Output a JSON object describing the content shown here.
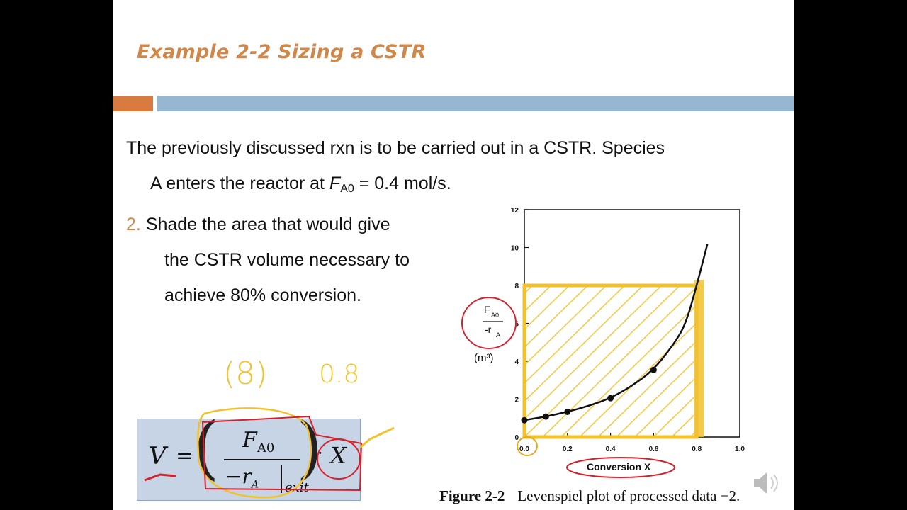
{
  "slide": {
    "title": "Example 2-2 Sizing a CSTR",
    "intro_line1": "The previously discussed rxn is to be carried out in a CSTR. Species",
    "intro_line2_pre": "A  enters the reactor at ",
    "intro_var": "F",
    "intro_sub": "A0",
    "intro_line2_post": " = 0.4 mol/s.",
    "item_number": "2.",
    "item_line1": "Shade the area that would give",
    "item_line2": "the CSTR volume necessary to",
    "item_line3": "achieve 80% conversion."
  },
  "equation": {
    "lhs": "V",
    "equals": "=",
    "num_var": "F",
    "num_sub": "A0",
    "den_var": "−r",
    "den_sub": "A",
    "den_eval": "exit",
    "dot": "·",
    "rhs_var": "X"
  },
  "handwriting": {
    "value_a": "(8)",
    "value_b": "0.8"
  },
  "chart_data": {
    "type": "line",
    "title": "",
    "xlabel": "Conversion X",
    "ylabel_lines": [
      "F",
      "A0",
      "-r",
      "A",
      "(m³)"
    ],
    "xlim": [
      0.0,
      1.0
    ],
    "ylim": [
      0,
      12
    ],
    "x_ticks": [
      "0.0",
      "0.2",
      "0.4",
      "0.6",
      "0.8",
      "1.0"
    ],
    "y_ticks": [
      "0",
      "2",
      "4",
      "6",
      "8",
      "10",
      "12"
    ],
    "points": [
      {
        "x": 0.0,
        "y": 0.89
      },
      {
        "x": 0.1,
        "y": 1.08
      },
      {
        "x": 0.2,
        "y": 1.33
      },
      {
        "x": 0.4,
        "y": 2.05
      },
      {
        "x": 0.6,
        "y": 3.54
      }
    ],
    "curve": [
      {
        "x": 0.0,
        "y": 0.89
      },
      {
        "x": 0.1,
        "y": 1.08
      },
      {
        "x": 0.2,
        "y": 1.33
      },
      {
        "x": 0.3,
        "y": 1.65
      },
      {
        "x": 0.4,
        "y": 2.05
      },
      {
        "x": 0.5,
        "y": 2.7
      },
      {
        "x": 0.6,
        "y": 3.54
      },
      {
        "x": 0.7,
        "y": 5.0
      },
      {
        "x": 0.75,
        "y": 6.0
      },
      {
        "x": 0.8,
        "y": 8.0
      },
      {
        "x": 0.85,
        "y": 10.2
      }
    ],
    "shaded_region": {
      "x0": 0.0,
      "x1": 0.8,
      "y0": 0,
      "y1": 8.0
    },
    "caption_label": "Figure 2-2",
    "caption_text": "Levenspiel plot of processed data −2."
  },
  "colors": {
    "title": "#d0884a",
    "accent_orange": "#d97a40",
    "accent_blue": "#96b6d2",
    "shading": "#f2c12e",
    "annotation_red": "#d8202a"
  }
}
